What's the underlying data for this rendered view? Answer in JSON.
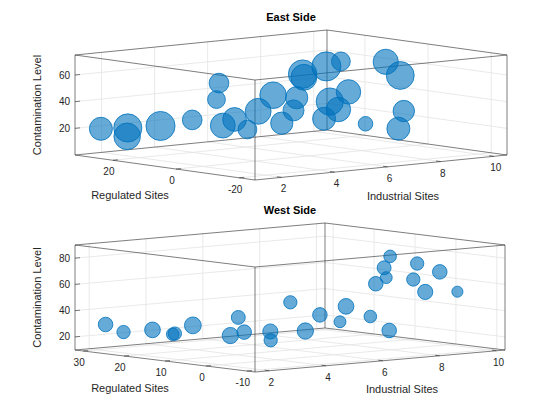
{
  "chart_data": [
    {
      "type": "bubble",
      "title": "East Side",
      "x_label": "Industrial Sites",
      "y_label": "Regulated Sites",
      "z_label": "Contamination Level",
      "color": "#0072bd",
      "grid": true,
      "xlim": [
        1,
        10.5
      ],
      "xticks": [
        2,
        4,
        6,
        8,
        10
      ],
      "ylim": [
        -25,
        32
      ],
      "yticks": [
        -20,
        0,
        20
      ],
      "zlim": [
        0,
        75
      ],
      "zticks": [
        20,
        40,
        60
      ],
      "x": [
        1.5,
        1.8,
        2.2,
        1.3,
        2.8,
        3.0,
        3.5,
        2.5,
        3.2,
        4.0,
        4.2,
        3.8,
        4.5,
        5.0,
        5.5,
        6.0,
        6.2,
        6.5,
        7.0,
        7.2,
        7.5,
        7.8,
        8.2,
        8.5,
        9.0,
        9.5,
        10.0,
        6.8
      ],
      "y": [
        28,
        22,
        15,
        18,
        10,
        2,
        -5,
        -10,
        -15,
        -12,
        -20,
        5,
        -22,
        20,
        25,
        -18,
        -5,
        8,
        -20,
        12,
        0,
        -15,
        20,
        -8,
        15,
        5,
        28,
        18
      ],
      "z": [
        20,
        22,
        25,
        18,
        30,
        28,
        40,
        30,
        35,
        42,
        38,
        30,
        45,
        50,
        35,
        30,
        42,
        40,
        25,
        55,
        45,
        35,
        48,
        58,
        60,
        62,
        50,
        38
      ],
      "sizes": [
        30,
        45,
        48,
        40,
        22,
        35,
        38,
        20,
        28,
        25,
        30,
        32,
        34,
        22,
        18,
        12,
        42,
        28,
        30,
        46,
        34,
        26,
        38,
        44,
        20,
        36,
        48,
        40
      ]
    },
    {
      "type": "bubble",
      "title": "West Side",
      "x_label": "Industrial Sites",
      "y_label": "Regulated Sites",
      "z_label": "Contamination Level",
      "color": "#0072bd",
      "grid": true,
      "xlim": [
        1.5,
        10.3
      ],
      "xticks": [
        2,
        4,
        6,
        8,
        10
      ],
      "ylim": [
        -12,
        32
      ],
      "yticks": [
        -10,
        0,
        10,
        20,
        30
      ],
      "zlim": [
        10,
        90
      ],
      "zticks": [
        20,
        40,
        60,
        80
      ],
      "x": [
        2,
        2.2,
        2.5,
        3,
        3.2,
        3.8,
        4.0,
        4.5,
        4.2,
        5.0,
        5.5,
        5.8,
        6.0,
        6.2,
        4.8,
        6.8,
        7.0,
        8.2,
        8.5,
        8.8,
        9.0,
        9.3,
        9.5,
        9.8,
        10.0,
        9.2,
        3.5
      ],
      "y": [
        28,
        25,
        20,
        18,
        15,
        10,
        8,
        5,
        3,
        0,
        -5,
        2,
        -3,
        12,
        15,
        -8,
        -2,
        5,
        -5,
        0,
        8,
        -3,
        12,
        6,
        14,
        -8,
        22
      ],
      "z": [
        30,
        25,
        28,
        25,
        32,
        25,
        28,
        22,
        30,
        30,
        38,
        40,
        48,
        45,
        35,
        30,
        38,
        58,
        55,
        62,
        60,
        68,
        65,
        70,
        72,
        55,
        22
      ],
      "sizes": [
        12,
        10,
        14,
        10,
        16,
        15,
        12,
        10,
        13,
        15,
        8,
        12,
        14,
        10,
        11,
        12,
        9,
        12,
        13,
        10,
        8,
        12,
        11,
        10,
        9,
        7,
        9
      ]
    }
  ]
}
